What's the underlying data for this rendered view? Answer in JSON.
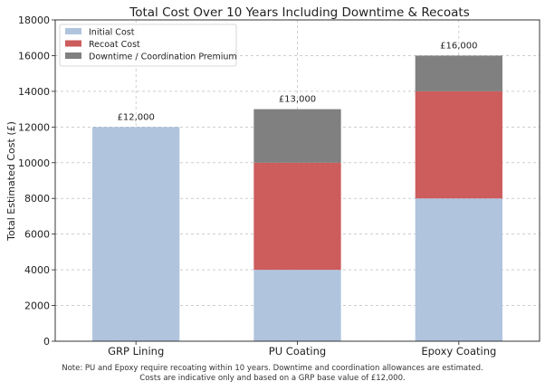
{
  "chart_data": {
    "type": "bar",
    "stacked": true,
    "title": "Total Cost Over 10 Years Including Downtime & Recoats",
    "xlabel": "",
    "ylabel": "Total Estimated Cost (£)",
    "categories": [
      "GRP Lining",
      "PU Coating",
      "Epoxy Coating"
    ],
    "series": [
      {
        "name": "Initial Cost",
        "color": "#b0c4de",
        "values": [
          12000,
          4000,
          8000
        ]
      },
      {
        "name": "Recoat Cost",
        "color": "#cd5c5c",
        "values": [
          0,
          6000,
          6000
        ]
      },
      {
        "name": "Downtime / Coordination Premium",
        "color": "#808080",
        "values": [
          0,
          3000,
          2000
        ]
      }
    ],
    "totals": [
      "£12,000",
      "£13,000",
      "£16,000"
    ],
    "ylim": [
      0,
      18000
    ],
    "yticks": [
      0,
      2000,
      4000,
      6000,
      8000,
      10000,
      12000,
      14000,
      16000,
      18000
    ],
    "grid": true,
    "legend": "top-left"
  },
  "note": {
    "line1": "Note: PU and Epoxy require recoating within 10 years. Downtime and coordination allowances are estimated.",
    "line2": "Costs are indicative only and based on a GRP base value of £12,000."
  }
}
